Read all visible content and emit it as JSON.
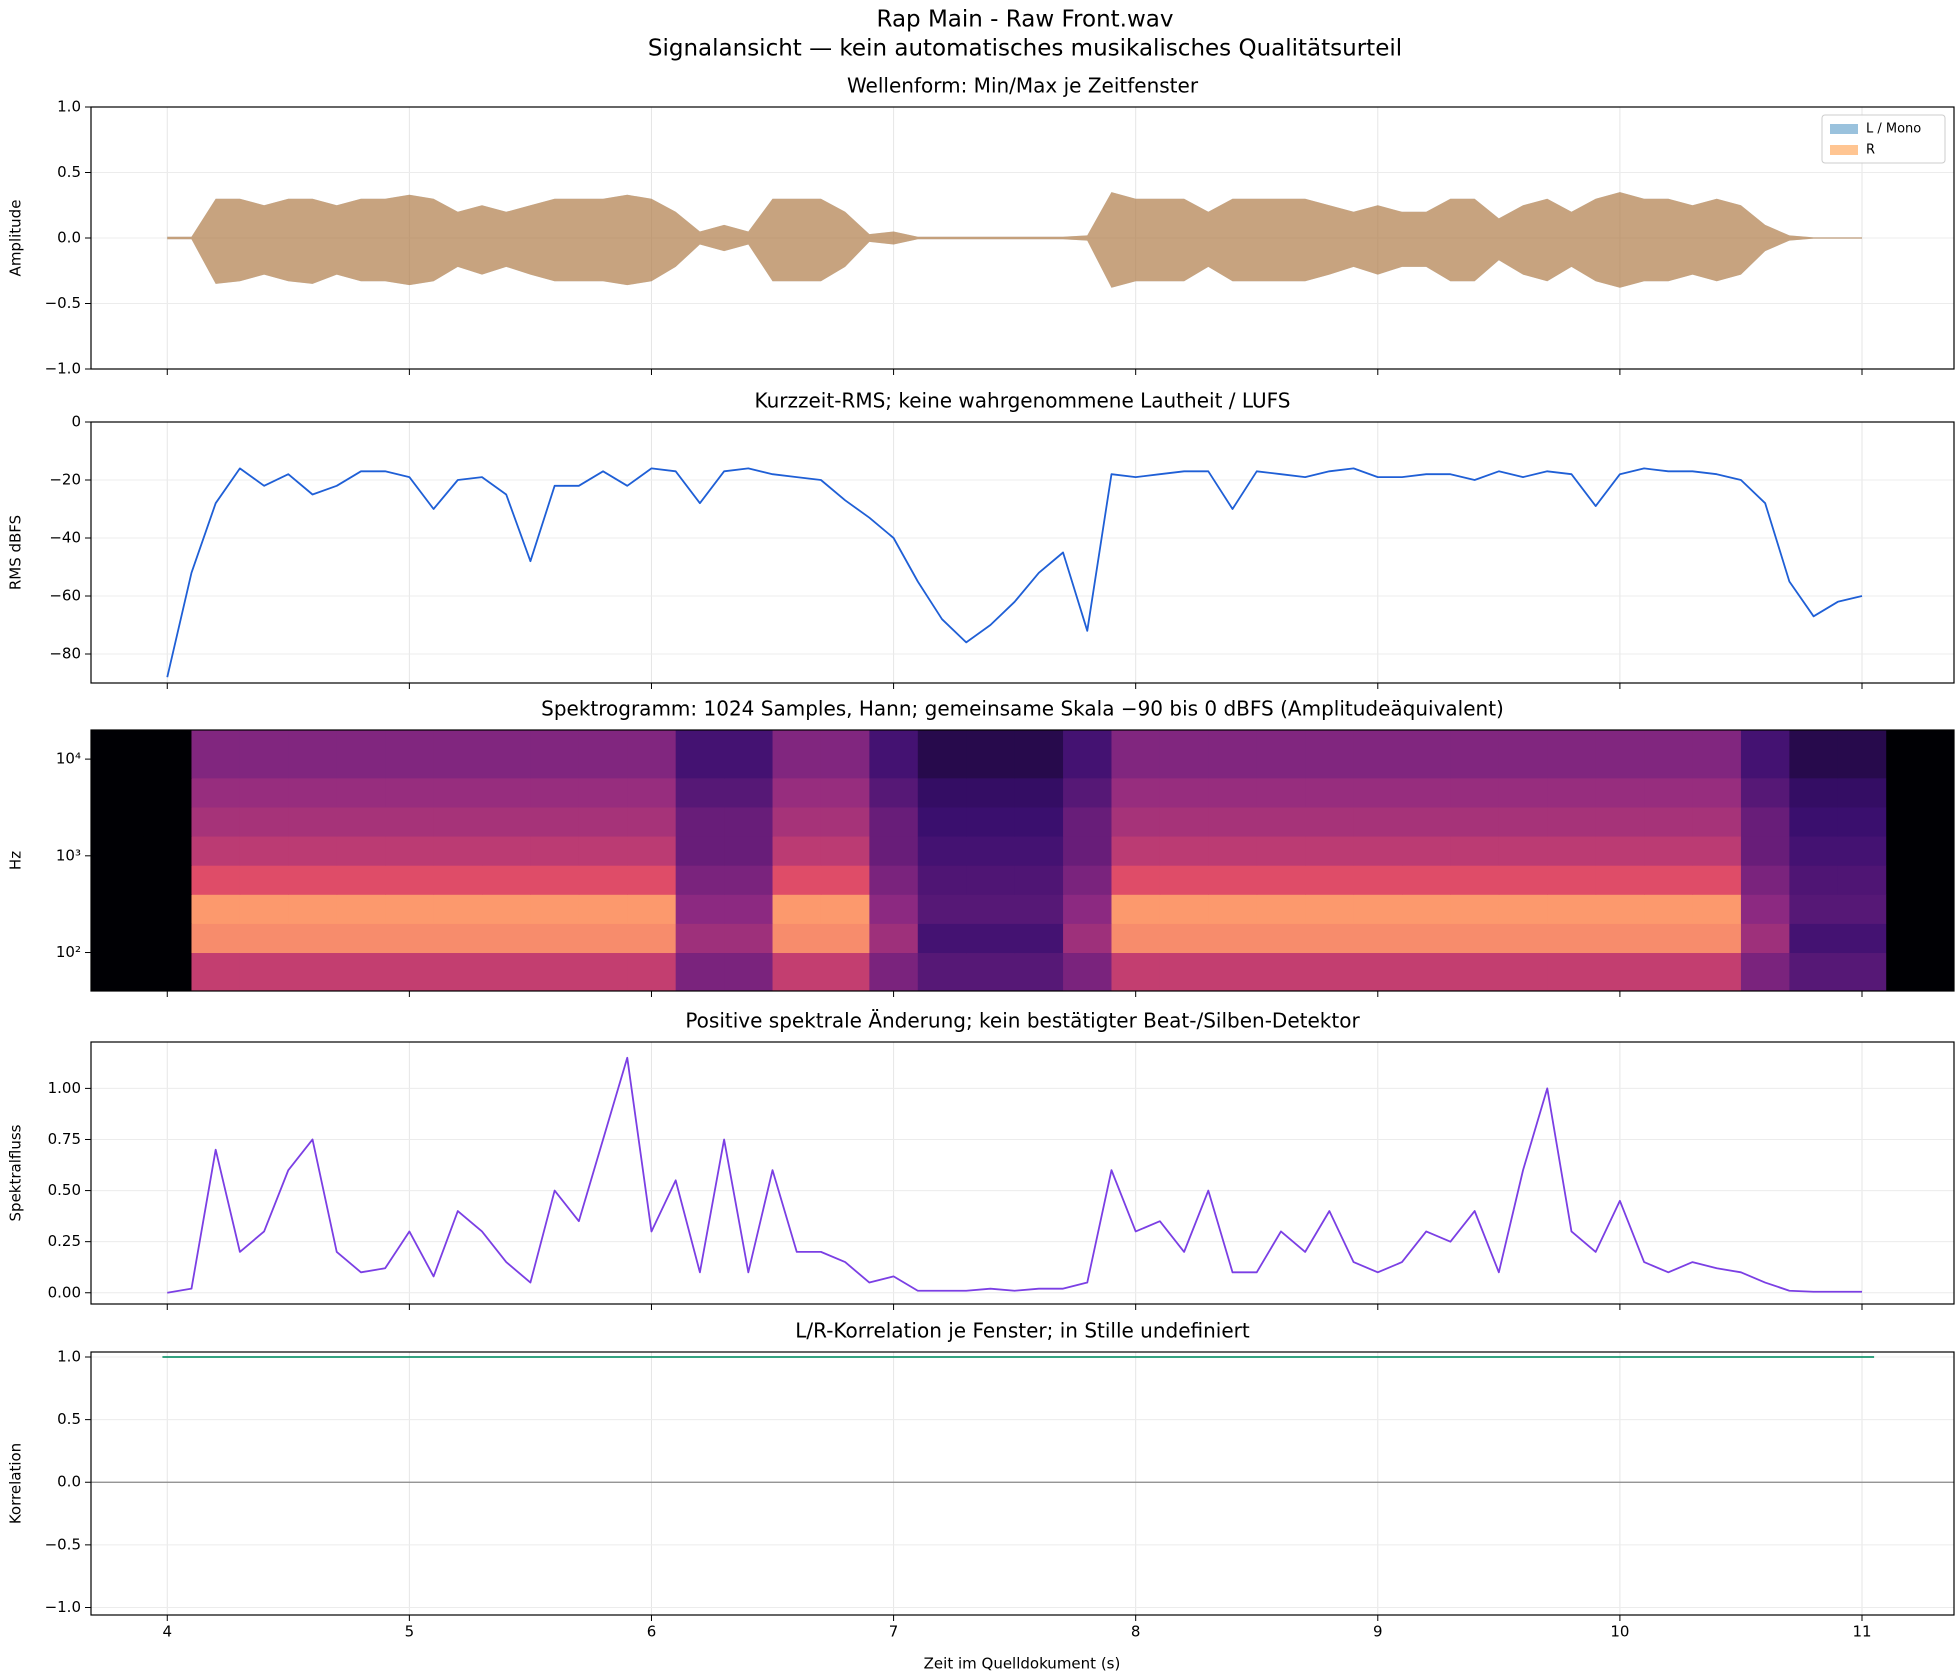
{
  "figure": {
    "title": "Rap Main - Raw Front.wav",
    "subtitle": "Signalansicht — kein automatisches musikalisches Qualitätsurteil",
    "xlabel": "Zeit im Quelldokument (s)",
    "xlim": [
      3.685,
      11.38
    ],
    "xticks": [
      4,
      5,
      6,
      7,
      8,
      9,
      10,
      11
    ],
    "grid": true,
    "x": [
      4.0,
      4.1,
      4.2,
      4.3,
      4.4,
      4.5,
      4.6,
      4.7,
      4.8,
      4.9,
      5.0,
      5.1,
      5.2,
      5.3,
      5.4,
      5.5,
      5.6,
      5.7,
      5.8,
      5.9,
      6.0,
      6.1,
      6.2,
      6.3,
      6.4,
      6.5,
      6.6,
      6.7,
      6.8,
      6.9,
      7.0,
      7.1,
      7.2,
      7.3,
      7.4,
      7.5,
      7.6,
      7.7,
      7.8,
      7.9,
      8.0,
      8.1,
      8.2,
      8.3,
      8.4,
      8.5,
      8.6,
      8.7,
      8.8,
      8.9,
      9.0,
      9.1,
      9.2,
      9.3,
      9.4,
      9.5,
      9.6,
      9.7,
      9.8,
      9.9,
      10.0,
      10.1,
      10.2,
      10.3,
      10.4,
      10.5,
      10.6,
      10.7,
      10.8,
      10.9,
      11.0
    ]
  },
  "chart_data": [
    {
      "type": "band",
      "title": "Wellenform: Min/Max je Zeitfenster",
      "ylabel": "Amplitude",
      "ylim": [
        -1,
        1
      ],
      "yticks": [
        {
          "value": 1,
          "label": "1.0"
        },
        {
          "value": 0.5,
          "label": "0.5"
        },
        {
          "value": 0,
          "label": "0.0"
        },
        {
          "value": -0.5,
          "label": "−0.5"
        },
        {
          "value": -1,
          "label": "−1.0"
        }
      ],
      "legend": "upper right",
      "series": [
        {
          "name": "L / Mono",
          "color": "#1f77b4",
          "max": [
            0.01,
            0.01,
            0.3,
            0.3,
            0.25,
            0.3,
            0.3,
            0.25,
            0.3,
            0.3,
            0.33,
            0.3,
            0.2,
            0.25,
            0.2,
            0.25,
            0.3,
            0.3,
            0.3,
            0.33,
            0.3,
            0.2,
            0.05,
            0.1,
            0.05,
            0.3,
            0.3,
            0.3,
            0.2,
            0.03,
            0.05,
            0.01,
            0.01,
            0.01,
            0.01,
            0.01,
            0.01,
            0.01,
            0.02,
            0.35,
            0.3,
            0.3,
            0.3,
            0.2,
            0.3,
            0.3,
            0.3,
            0.3,
            0.25,
            0.2,
            0.25,
            0.2,
            0.2,
            0.3,
            0.3,
            0.15,
            0.25,
            0.3,
            0.2,
            0.3,
            0.35,
            0.3,
            0.3,
            0.25,
            0.3,
            0.25,
            0.1,
            0.02,
            0.005,
            0.005,
            0.005
          ],
          "min": [
            -0.01,
            -0.01,
            -0.35,
            -0.33,
            -0.28,
            -0.33,
            -0.35,
            -0.28,
            -0.33,
            -0.33,
            -0.36,
            -0.33,
            -0.22,
            -0.28,
            -0.22,
            -0.28,
            -0.33,
            -0.33,
            -0.33,
            -0.36,
            -0.33,
            -0.22,
            -0.05,
            -0.1,
            -0.05,
            -0.33,
            -0.33,
            -0.33,
            -0.22,
            -0.03,
            -0.05,
            -0.01,
            -0.01,
            -0.01,
            -0.01,
            -0.01,
            -0.01,
            -0.01,
            -0.02,
            -0.38,
            -0.33,
            -0.33,
            -0.33,
            -0.22,
            -0.33,
            -0.33,
            -0.33,
            -0.33,
            -0.28,
            -0.22,
            -0.28,
            -0.22,
            -0.22,
            -0.33,
            -0.33,
            -0.17,
            -0.28,
            -0.33,
            -0.22,
            -0.33,
            -0.38,
            -0.33,
            -0.33,
            -0.28,
            -0.33,
            -0.28,
            -0.1,
            -0.02,
            -0.005,
            -0.005,
            -0.005
          ]
        },
        {
          "name": "R",
          "color": "#ff7f0e",
          "max": [
            0.01,
            0.01,
            0.3,
            0.3,
            0.25,
            0.3,
            0.3,
            0.25,
            0.3,
            0.3,
            0.33,
            0.3,
            0.2,
            0.25,
            0.2,
            0.25,
            0.3,
            0.3,
            0.3,
            0.33,
            0.3,
            0.2,
            0.05,
            0.1,
            0.05,
            0.3,
            0.3,
            0.3,
            0.2,
            0.03,
            0.05,
            0.01,
            0.01,
            0.01,
            0.01,
            0.01,
            0.01,
            0.01,
            0.02,
            0.35,
            0.3,
            0.3,
            0.3,
            0.2,
            0.3,
            0.3,
            0.3,
            0.3,
            0.25,
            0.2,
            0.25,
            0.2,
            0.2,
            0.3,
            0.3,
            0.15,
            0.25,
            0.3,
            0.2,
            0.3,
            0.35,
            0.3,
            0.3,
            0.25,
            0.3,
            0.25,
            0.1,
            0.02,
            0.005,
            0.005,
            0.005
          ],
          "min": [
            -0.01,
            -0.01,
            -0.35,
            -0.33,
            -0.28,
            -0.33,
            -0.35,
            -0.28,
            -0.33,
            -0.33,
            -0.36,
            -0.33,
            -0.22,
            -0.28,
            -0.22,
            -0.28,
            -0.33,
            -0.33,
            -0.33,
            -0.36,
            -0.33,
            -0.22,
            -0.05,
            -0.1,
            -0.05,
            -0.33,
            -0.33,
            -0.33,
            -0.22,
            -0.03,
            -0.05,
            -0.01,
            -0.01,
            -0.01,
            -0.01,
            -0.01,
            -0.01,
            -0.01,
            -0.02,
            -0.38,
            -0.33,
            -0.33,
            -0.33,
            -0.22,
            -0.33,
            -0.33,
            -0.33,
            -0.33,
            -0.28,
            -0.22,
            -0.28,
            -0.22,
            -0.22,
            -0.33,
            -0.33,
            -0.17,
            -0.28,
            -0.33,
            -0.22,
            -0.33,
            -0.38,
            -0.33,
            -0.33,
            -0.28,
            -0.33,
            -0.28,
            -0.1,
            -0.02,
            -0.005,
            -0.005,
            -0.005
          ]
        }
      ]
    },
    {
      "type": "line",
      "title": "Kurzzeit-RMS; keine wahrgenommene Lautheit / LUFS",
      "ylabel": "RMS dBFS",
      "ylim": [
        -90,
        0
      ],
      "yticks": [
        0,
        {
          "value": -20,
          "label": "−20"
        },
        {
          "value": -40,
          "label": "−40"
        },
        {
          "value": -60,
          "label": "−60"
        },
        {
          "value": -80,
          "label": "−80"
        }
      ],
      "color": "#1f5fd6",
      "values": [
        -88,
        -52,
        -28,
        -16,
        -22,
        -18,
        -25,
        -22,
        -17,
        -17,
        -19,
        -30,
        -20,
        -19,
        -25,
        -48,
        -22,
        -22,
        -17,
        -22,
        -16,
        -17,
        -28,
        -17,
        -16,
        -18,
        -19,
        -20,
        -27,
        -33,
        -40,
        -55,
        -68,
        -76,
        -70,
        -62,
        -52,
        -45,
        -72,
        -18,
        -19,
        -18,
        -17,
        -17,
        -30,
        -17,
        -18,
        -19,
        -17,
        -16,
        -19,
        -19,
        -18,
        -18,
        -20,
        -17,
        -19,
        -17,
        -18,
        -29,
        -18,
        -16,
        -17,
        -17,
        -18,
        -20,
        -28,
        -55,
        -67,
        -62,
        -60
      ]
    },
    {
      "type": "spectrogram",
      "title": "Spektrogramm: 1024 Samples, Hann; gemeinsame Skala −90 bis 0 dBFS (Amplitudeäquivalent)",
      "ylabel": "Hz",
      "ylim": [
        40,
        20000
      ],
      "log_y": true,
      "colormap": "magma",
      "zlim": [
        -90,
        0
      ],
      "yticks": [
        {
          "value": 100,
          "label": "10²"
        },
        {
          "value": 1000,
          "label": "10³"
        },
        {
          "value": 10000,
          "label": "10⁴"
        }
      ],
      "time_bins": [
        3.7,
        3.9,
        4.1,
        4.3,
        4.5,
        4.7,
        4.9,
        5.1,
        5.3,
        5.5,
        5.7,
        5.9,
        6.1,
        6.3,
        6.5,
        6.7,
        6.9,
        7.1,
        7.3,
        7.5,
        7.7,
        7.9,
        8.1,
        8.3,
        8.5,
        8.7,
        8.9,
        9.1,
        9.3,
        9.5,
        9.7,
        9.9,
        10.1,
        10.3,
        10.5,
        10.7,
        10.9,
        11.1,
        11.3
      ],
      "freq_bins": [
        40,
        100,
        200,
        400,
        800,
        1600,
        3200,
        6400,
        20000
      ],
      "z": [
        [
          -90,
          -90,
          -30,
          -30,
          -30,
          -30,
          -30,
          -30,
          -30,
          -30,
          -30,
          -30,
          -50,
          -50,
          -30,
          -30,
          -50,
          -60,
          -60,
          -60,
          -50,
          -30,
          -30,
          -30,
          -30,
          -30,
          -30,
          -30,
          -30,
          -30,
          -30,
          -30,
          -30,
          -30,
          -50,
          -60,
          -60,
          -90
        ],
        [
          -90,
          -90,
          -12,
          -12,
          -12,
          -12,
          -12,
          -12,
          -12,
          -12,
          -12,
          -12,
          -40,
          -40,
          -12,
          -12,
          -40,
          -65,
          -65,
          -65,
          -40,
          -12,
          -12,
          -12,
          -12,
          -12,
          -12,
          -12,
          -12,
          -12,
          -12,
          -12,
          -12,
          -12,
          -40,
          -65,
          -65,
          -90
        ],
        [
          -90,
          -90,
          -10,
          -10,
          -10,
          -10,
          -10,
          -10,
          -10,
          -10,
          -10,
          -10,
          -45,
          -45,
          -10,
          -10,
          -45,
          -60,
          -60,
          -60,
          -45,
          -10,
          -10,
          -10,
          -10,
          -10,
          -10,
          -10,
          -10,
          -10,
          -10,
          -10,
          -10,
          -10,
          -45,
          -60,
          -60,
          -90
        ],
        [
          -90,
          -90,
          -22,
          -22,
          -22,
          -22,
          -22,
          -22,
          -22,
          -22,
          -22,
          -22,
          -50,
          -50,
          -22,
          -22,
          -50,
          -62,
          -62,
          -62,
          -50,
          -22,
          -22,
          -22,
          -22,
          -22,
          -22,
          -22,
          -22,
          -22,
          -22,
          -22,
          -22,
          -22,
          -50,
          -62,
          -62,
          -90
        ],
        [
          -90,
          -90,
          -32,
          -32,
          -32,
          -32,
          -32,
          -32,
          -32,
          -32,
          -32,
          -32,
          -55,
          -55,
          -32,
          -32,
          -55,
          -65,
          -65,
          -65,
          -55,
          -32,
          -32,
          -32,
          -32,
          -32,
          -32,
          -32,
          -32,
          -32,
          -32,
          -32,
          -32,
          -32,
          -55,
          -65,
          -65,
          -90
        ],
        [
          -90,
          -90,
          -38,
          -38,
          -38,
          -38,
          -38,
          -38,
          -38,
          -38,
          -38,
          -38,
          -55,
          -55,
          -38,
          -38,
          -55,
          -68,
          -68,
          -68,
          -55,
          -38,
          -38,
          -38,
          -38,
          -38,
          -38,
          -38,
          -38,
          -38,
          -38,
          -38,
          -38,
          -38,
          -55,
          -68,
          -68,
          -90
        ],
        [
          -90,
          -90,
          -42,
          -42,
          -42,
          -42,
          -42,
          -42,
          -42,
          -42,
          -42,
          -42,
          -60,
          -60,
          -42,
          -42,
          -60,
          -70,
          -70,
          -70,
          -60,
          -42,
          -42,
          -42,
          -42,
          -42,
          -42,
          -42,
          -42,
          -42,
          -42,
          -42,
          -42,
          -42,
          -60,
          -70,
          -70,
          -90
        ],
        [
          -90,
          -90,
          -48,
          -48,
          -48,
          -48,
          -48,
          -48,
          -48,
          -48,
          -48,
          -48,
          -65,
          -65,
          -48,
          -48,
          -65,
          -75,
          -75,
          -75,
          -65,
          -48,
          -48,
          -48,
          -48,
          -48,
          -48,
          -48,
          -48,
          -48,
          -48,
          -48,
          -48,
          -48,
          -65,
          -75,
          -75,
          -90
        ]
      ]
    },
    {
      "type": "line",
      "title": "Positive spektrale Änderung; kein bestätigter Beat-/Silben-Detektor",
      "ylabel": "Spektralfluss",
      "ylim": [
        -0.055,
        1.227
      ],
      "yticks": [
        {
          "value": 0,
          "label": "0.00"
        },
        {
          "value": 0.25,
          "label": "0.25"
        },
        {
          "value": 0.5,
          "label": "0.50"
        },
        {
          "value": 0.75,
          "label": "0.75"
        },
        {
          "value": 1,
          "label": "1.00"
        }
      ],
      "color": "#7b3fe4",
      "values": [
        0,
        0.02,
        0.7,
        0.2,
        0.3,
        0.6,
        0.75,
        0.2,
        0.1,
        0.12,
        0.3,
        0.08,
        0.4,
        0.3,
        0.15,
        0.05,
        0.5,
        0.35,
        0.75,
        1.15,
        0.3,
        0.55,
        0.1,
        0.75,
        0.1,
        0.6,
        0.2,
        0.2,
        0.15,
        0.05,
        0.08,
        0.01,
        0.01,
        0.01,
        0.02,
        0.01,
        0.02,
        0.02,
        0.05,
        0.6,
        0.3,
        0.35,
        0.2,
        0.5,
        0.1,
        0.1,
        0.3,
        0.2,
        0.4,
        0.15,
        0.1,
        0.15,
        0.3,
        0.25,
        0.4,
        0.1,
        0.6,
        1.0,
        0.3,
        0.2,
        0.45,
        0.15,
        0.1,
        0.15,
        0.12,
        0.1,
        0.05,
        0.01,
        0.005,
        0.005,
        0.005
      ]
    },
    {
      "type": "line",
      "title": "L/R-Korrelation je Fenster; in Stille undefiniert",
      "ylabel": "Korrelation",
      "ylim": [
        -1.06,
        1.04
      ],
      "yticks": [
        {
          "value": 1,
          "label": "1.0"
        },
        {
          "value": 0.5,
          "label": "0.5"
        },
        {
          "value": 0,
          "label": "0.0"
        },
        {
          "value": -0.5,
          "label": "−0.5"
        },
        {
          "value": -1,
          "label": "−1.0"
        }
      ],
      "zero_line": true,
      "color": "#17956e",
      "x": [
        3.98,
        11.05
      ],
      "values": [
        1,
        1
      ]
    }
  ]
}
